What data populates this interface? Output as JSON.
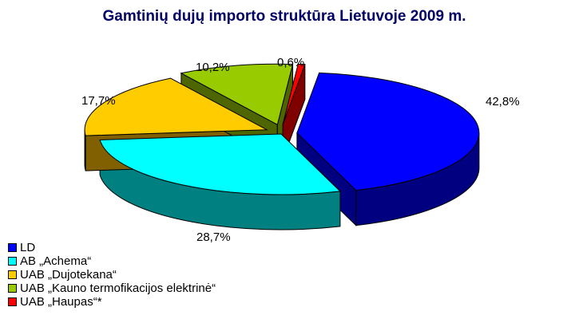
{
  "chart_data": {
    "type": "pie",
    "title": "Gamtinių dujų importo struktūra Lietuvoje 2009 m.",
    "slices": [
      {
        "label": "LD",
        "value": 42.8,
        "value_label": "42,8%",
        "color": "#0000ff",
        "dark": "#000080",
        "exploded": true
      },
      {
        "label": "AB „Achema“",
        "value": 28.7,
        "value_label": "28,7%",
        "color": "#00ffff",
        "dark": "#008080",
        "exploded": false
      },
      {
        "label": "UAB „Dujotekana“",
        "value": 17.7,
        "value_label": "17,7%",
        "color": "#ffcc00",
        "dark": "#806000",
        "exploded": true
      },
      {
        "label": "UAB „Kauno termofikacijos elektrinė“",
        "value": 10.2,
        "value_label": "10,2%",
        "color": "#99cc00",
        "dark": "#4d6600",
        "exploded": true
      },
      {
        "label": "UAB „Haupas“*",
        "value": 0.6,
        "value_label": "0,6%",
        "color": "#ff0000",
        "dark": "#800000",
        "exploded": true
      }
    ],
    "legend_position": "bottom-left",
    "style": "3d-exploded"
  }
}
